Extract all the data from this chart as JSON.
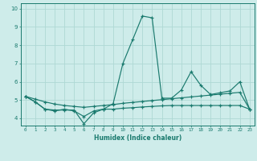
{
  "xlabel": "Humidex (Indice chaleur)",
  "bg_color": "#ceecea",
  "grid_color": "#aed8d4",
  "line_color": "#1a7a6e",
  "x_ticks": [
    0,
    1,
    2,
    3,
    4,
    5,
    6,
    7,
    8,
    9,
    10,
    11,
    12,
    13,
    14,
    15,
    16,
    17,
    18,
    19,
    20,
    21,
    22,
    23
  ],
  "ylim": [
    3.6,
    10.3
  ],
  "xlim": [
    -0.5,
    23.5
  ],
  "y_ticks": [
    4,
    5,
    6,
    7,
    8,
    9,
    10
  ],
  "line1_x": [
    0,
    1,
    2,
    3,
    4,
    5,
    6,
    7,
    8,
    9,
    10,
    11,
    12,
    13,
    14,
    15,
    16,
    17,
    18,
    19,
    20,
    21,
    22,
    23
  ],
  "line1_y": [
    5.2,
    4.9,
    4.5,
    4.4,
    4.5,
    4.4,
    4.1,
    4.4,
    4.5,
    4.8,
    7.0,
    8.3,
    9.6,
    9.5,
    5.1,
    5.1,
    5.55,
    6.55,
    5.8,
    5.3,
    5.4,
    5.5,
    6.0,
    4.5
  ],
  "line2_x": [
    0,
    1,
    2,
    3,
    4,
    5,
    6,
    7,
    8,
    9,
    10,
    11,
    12,
    13,
    14,
    15,
    16,
    17,
    18,
    19,
    20,
    21,
    22,
    23
  ],
  "line2_y": [
    5.2,
    5.05,
    4.9,
    4.78,
    4.7,
    4.65,
    4.6,
    4.65,
    4.7,
    4.75,
    4.82,
    4.87,
    4.92,
    4.97,
    5.02,
    5.07,
    5.12,
    5.17,
    5.22,
    5.27,
    5.32,
    5.37,
    5.42,
    4.5
  ],
  "line3_x": [
    0,
    1,
    2,
    3,
    4,
    5,
    6,
    7,
    8,
    9,
    10,
    11,
    12,
    13,
    14,
    15,
    16,
    17,
    18,
    19,
    20,
    21,
    22,
    23
  ],
  "line3_y": [
    5.2,
    4.9,
    4.5,
    4.45,
    4.45,
    4.45,
    3.7,
    4.3,
    4.5,
    4.5,
    4.55,
    4.58,
    4.62,
    4.65,
    4.68,
    4.7,
    4.7,
    4.7,
    4.7,
    4.7,
    4.7,
    4.7,
    4.7,
    4.5
  ]
}
